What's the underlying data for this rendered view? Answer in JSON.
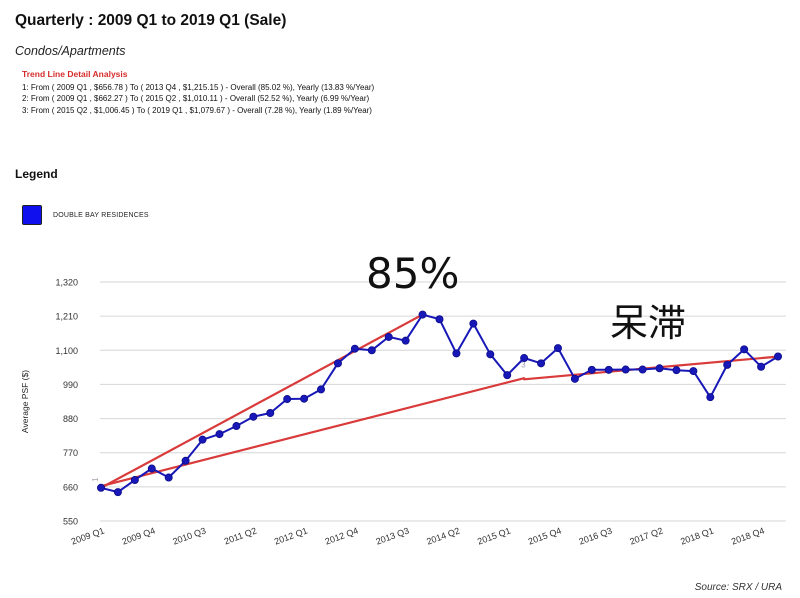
{
  "title": "Quarterly : 2009 Q1 to 2019 Q1 (Sale)",
  "subtitle": "Condos/Apartments",
  "trend_heading": "Trend Line Detail Analysis",
  "trend_lines": [
    "1: From ( 2009 Q1 , $656.78 ) To ( 2013 Q4 , $1,215.15 ) - Overall (85.02 %), Yearly (13.83 %/Year)",
    "2: From ( 2009 Q1 , $662.27 ) To ( 2015 Q2 , $1,010.11 ) - Overall (52.52 %), Yearly (6.99 %/Year)",
    "3: From ( 2015 Q2 , $1,006.45 ) To ( 2019 Q1 , $1,079.67 ) - Overall (7.28 %), Yearly (1.89 %/Year)"
  ],
  "legend_title": "Legend",
  "annotations": {
    "rise": "85%",
    "stagnant": "呆滞"
  },
  "source": "Source: SRX / URA",
  "colors": {
    "series": "#1818b8",
    "trend": "#d93a3a",
    "grid": "#d6d6d6",
    "axis": "#555555"
  },
  "chart_data": {
    "type": "line",
    "ylabel": "Average PSF ($)",
    "xlabel": "",
    "ylim": [
      550,
      1320
    ],
    "yticks": [
      550,
      660,
      770,
      880,
      990,
      1100,
      1210,
      1320
    ],
    "ytick_labels": [
      "550",
      "660",
      "770",
      "880",
      "990",
      "1,100",
      "1,210",
      "1,320"
    ],
    "xtick_labels": [
      "2009 Q1",
      "2009 Q4",
      "2010 Q3",
      "2011 Q2",
      "2012 Q1",
      "2012 Q4",
      "2013 Q3",
      "2014 Q2",
      "2015 Q1",
      "2015 Q4",
      "2016 Q3",
      "2017 Q2",
      "2018 Q1",
      "2018 Q4"
    ],
    "legend_position": "top-left",
    "grid": true,
    "categories": [
      "2009 Q1",
      "2009 Q2",
      "2009 Q3",
      "2009 Q4",
      "2010 Q1",
      "2010 Q2",
      "2010 Q3",
      "2010 Q4",
      "2011 Q1",
      "2011 Q2",
      "2011 Q3",
      "2011 Q4",
      "2012 Q1",
      "2012 Q2",
      "2012 Q3",
      "2012 Q4",
      "2013 Q1",
      "2013 Q2",
      "2013 Q3",
      "2013 Q4",
      "2014 Q1",
      "2014 Q2",
      "2014 Q3",
      "2014 Q4",
      "2015 Q1",
      "2015 Q2",
      "2015 Q3",
      "2015 Q4",
      "2016 Q1",
      "2016 Q2",
      "2016 Q3",
      "2016 Q4",
      "2017 Q1",
      "2017 Q2",
      "2017 Q3",
      "2017 Q4",
      "2018 Q1",
      "2018 Q2",
      "2018 Q3",
      "2018 Q4",
      "2019 Q1"
    ],
    "series": [
      {
        "name": "DOUBLE BAY RESIDENCES",
        "values": [
          657,
          643,
          682,
          719,
          690,
          744,
          812,
          830,
          856,
          886,
          898,
          943,
          944,
          974,
          1058,
          1105,
          1100,
          1143,
          1131,
          1215,
          1200,
          1090,
          1186,
          1087,
          1020,
          1075,
          1058,
          1107,
          1008,
          1037,
          1037,
          1038,
          1038,
          1042,
          1036,
          1033,
          949,
          1053,
          1103,
          1047,
          1080
        ]
      }
    ],
    "trend_lines": [
      {
        "label": "1",
        "from": {
          "x": "2009 Q1",
          "y": 656.78
        },
        "to": {
          "x": "2013 Q4",
          "y": 1215.15
        }
      },
      {
        "label": "2",
        "from": {
          "x": "2009 Q1",
          "y": 662.27
        },
        "to": {
          "x": "2015 Q2",
          "y": 1010.11
        }
      },
      {
        "label": "3",
        "from": {
          "x": "2015 Q2",
          "y": 1006.45
        },
        "to": {
          "x": "2019 Q1",
          "y": 1079.67
        }
      }
    ]
  }
}
